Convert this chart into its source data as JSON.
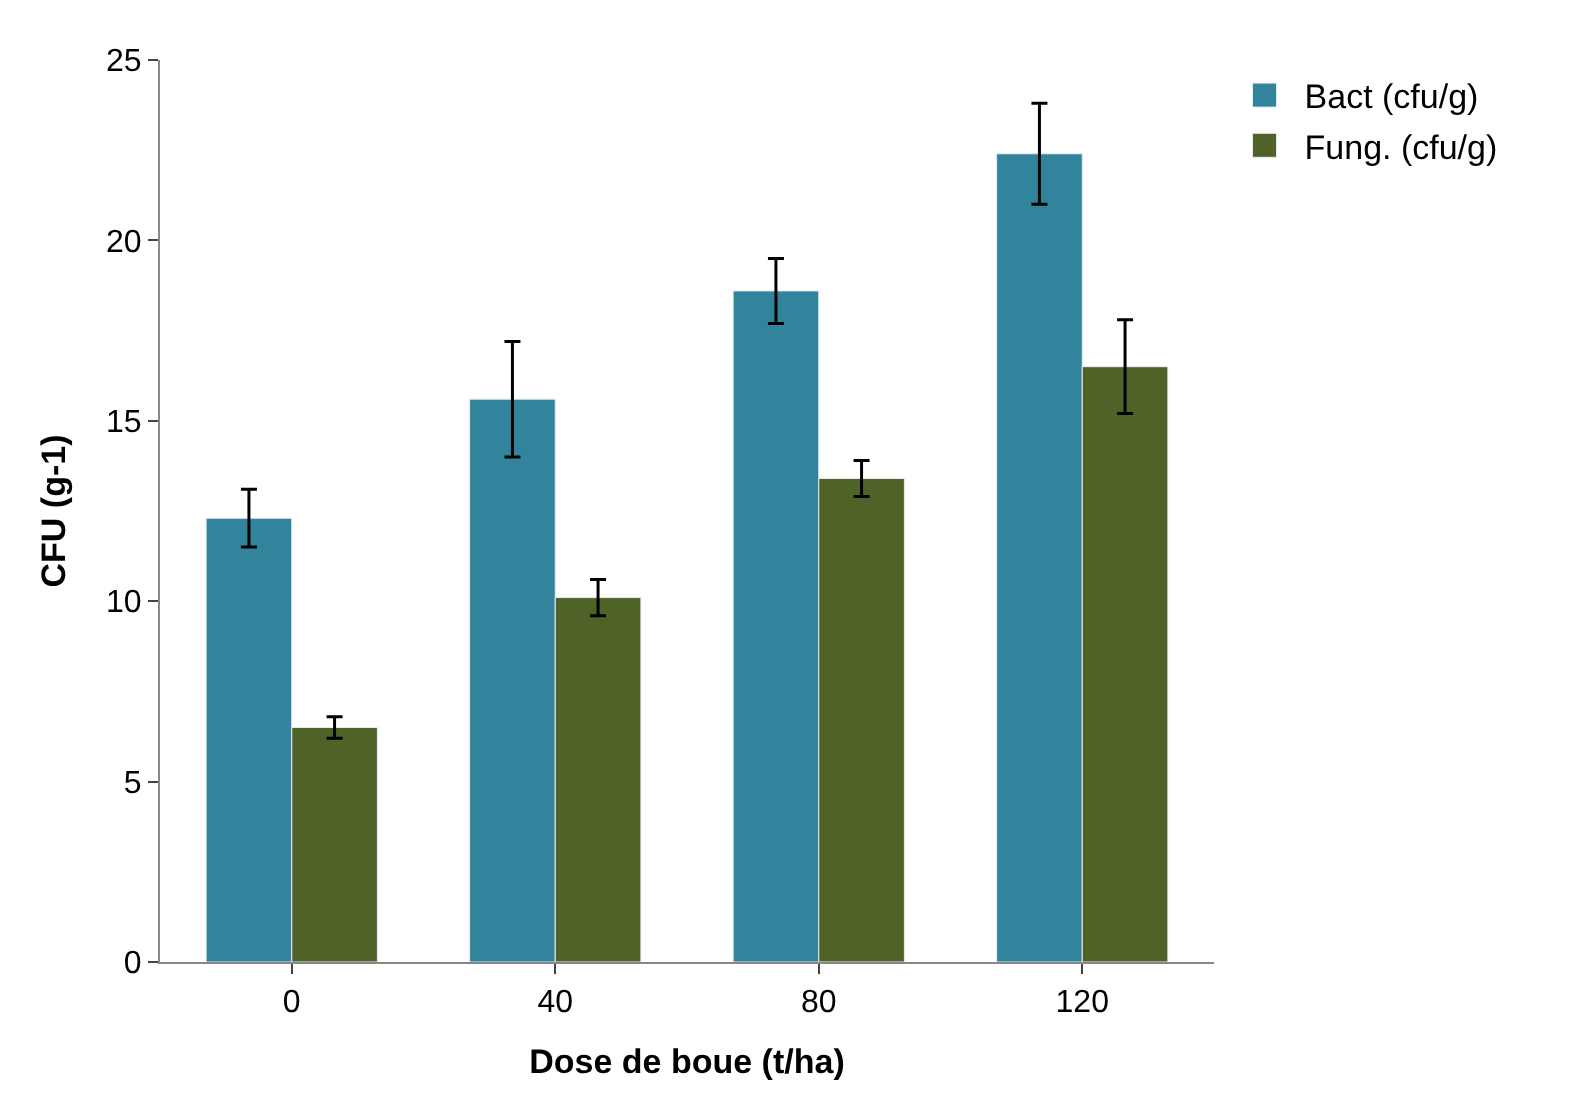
{
  "chart_data": {
    "type": "bar",
    "xlabel": "Dose de boue (t/ha)",
    "ylabel": "CFU (g-1)",
    "categories": [
      "0",
      "40",
      "80",
      "120"
    ],
    "series": [
      {
        "name": "Bact (cfu/g)",
        "color": "#31849b",
        "values": [
          12.3,
          15.6,
          18.6,
          22.4
        ],
        "errors": [
          0.8,
          1.6,
          0.9,
          1.4
        ]
      },
      {
        "name": "Fung. (cfu/g)",
        "color": "#4f6228",
        "values": [
          6.5,
          10.1,
          13.4,
          16.5
        ],
        "errors": [
          0.3,
          0.5,
          0.5,
          1.3
        ]
      }
    ],
    "ylim": [
      0,
      25
    ],
    "yticks": [
      0,
      5,
      10,
      15,
      20,
      25
    ],
    "legend": "top right"
  }
}
